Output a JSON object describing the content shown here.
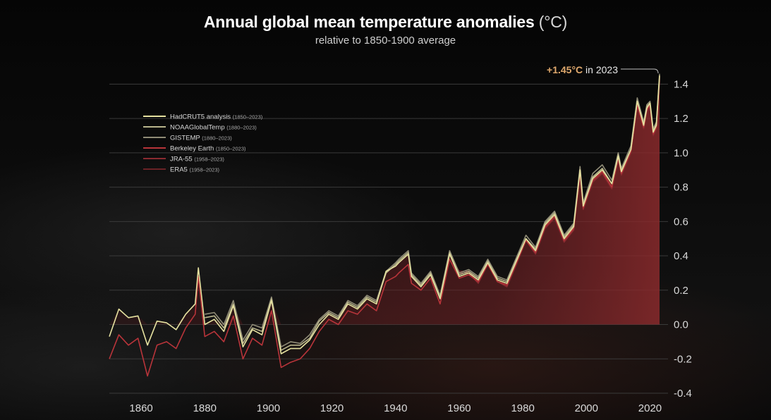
{
  "title": "Annual global mean temperature anomalies",
  "title_unit": "(°C)",
  "subtitle": "relative to 1850-1900 average",
  "annotation": {
    "prefix": "+",
    "value": "1.45",
    "unit_text": "°C",
    "suffix": " in 2023"
  },
  "chart_data": {
    "type": "line",
    "title": "Annual global mean temperature anomalies (°C)",
    "subtitle": "relative to 1850-1900 average",
    "xlim": [
      1850,
      2023
    ],
    "ylim": [
      -0.4,
      1.5
    ],
    "x_ticks": [
      1860,
      1880,
      1900,
      1920,
      1940,
      1960,
      1980,
      2000,
      2020
    ],
    "x_tick_labels": [
      "1860",
      "1880",
      "1900",
      "1920",
      "1940",
      "1960",
      "1980",
      "2000",
      "2020"
    ],
    "y_ticks": [
      -0.4,
      -0.2,
      0.0,
      0.2,
      0.4,
      0.6,
      0.8,
      1.0,
      1.2,
      1.4
    ],
    "y_tick_labels": [
      "-0.4",
      "-0.2",
      "0.0",
      "0.2",
      "0.4",
      "0.6",
      "0.8",
      "1.0",
      "1.2",
      "1.4"
    ],
    "y_axis_side": "right",
    "grid": true,
    "legend_position": "top-left",
    "series": [
      {
        "name": "HadCRUT5 analysis",
        "range": "(1850–2023)",
        "color": "#e6e2a0",
        "x": [
          1850,
          1853,
          1856,
          1859,
          1862,
          1865,
          1868,
          1871,
          1874,
          1877,
          1878,
          1880,
          1883,
          1886,
          1889,
          1892,
          1895,
          1898,
          1901,
          1904,
          1907,
          1910,
          1913,
          1916,
          1919,
          1922,
          1925,
          1928,
          1931,
          1934,
          1937,
          1940,
          1941,
          1944,
          1945,
          1948,
          1951,
          1954,
          1957,
          1960,
          1963,
          1966,
          1969,
          1972,
          1975,
          1978,
          1981,
          1984,
          1987,
          1990,
          1993,
          1996,
          1998,
          1999,
          2002,
          2005,
          2008,
          2010,
          2011,
          2014,
          2016,
          2018,
          2019,
          2020,
          2021,
          2022,
          2023
        ],
        "y": [
          -0.07,
          0.09,
          0.04,
          0.05,
          -0.12,
          0.02,
          0.01,
          -0.03,
          0.06,
          0.12,
          0.33,
          0.0,
          0.03,
          -0.04,
          0.11,
          -0.13,
          -0.03,
          -0.06,
          0.14,
          -0.17,
          -0.14,
          -0.14,
          -0.09,
          0.0,
          0.06,
          0.03,
          0.12,
          0.09,
          0.15,
          0.12,
          0.31,
          0.34,
          0.36,
          0.41,
          0.28,
          0.22,
          0.29,
          0.15,
          0.41,
          0.28,
          0.3,
          0.26,
          0.36,
          0.26,
          0.24,
          0.37,
          0.5,
          0.43,
          0.58,
          0.64,
          0.5,
          0.57,
          0.9,
          0.69,
          0.85,
          0.9,
          0.82,
          0.98,
          0.89,
          1.02,
          1.3,
          1.16,
          1.26,
          1.29,
          1.12,
          1.16,
          1.45
        ]
      },
      {
        "name": "NOAAGlobalTemp",
        "range": "(1880–2023)",
        "color": "#b9b58c",
        "x": [
          1880,
          1883,
          1886,
          1889,
          1892,
          1895,
          1898,
          1901,
          1904,
          1907,
          1910,
          1913,
          1916,
          1919,
          1922,
          1925,
          1928,
          1931,
          1934,
          1937,
          1940,
          1941,
          1944,
          1945,
          1948,
          1951,
          1954,
          1957,
          1960,
          1963,
          1966,
          1969,
          1972,
          1975,
          1978,
          1981,
          1984,
          1987,
          1990,
          1993,
          1996,
          1998,
          1999,
          2002,
          2005,
          2008,
          2010,
          2011,
          2014,
          2016,
          2018,
          2019,
          2020,
          2021,
          2022,
          2023
        ],
        "y": [
          0.04,
          0.05,
          -0.02,
          0.12,
          -0.11,
          -0.02,
          -0.04,
          0.15,
          -0.15,
          -0.12,
          -0.12,
          -0.08,
          0.02,
          0.07,
          0.04,
          0.13,
          0.1,
          0.16,
          0.13,
          0.3,
          0.35,
          0.37,
          0.42,
          0.29,
          0.23,
          0.3,
          0.16,
          0.42,
          0.29,
          0.31,
          0.27,
          0.37,
          0.27,
          0.25,
          0.38,
          0.5,
          0.44,
          0.59,
          0.65,
          0.51,
          0.58,
          0.9,
          0.7,
          0.86,
          0.91,
          0.82,
          0.99,
          0.9,
          1.02,
          1.3,
          1.17,
          1.27,
          1.29,
          1.13,
          1.17,
          1.44
        ]
      },
      {
        "name": "GISTEMP",
        "range": "(1880–2023)",
        "color": "#8f8b76",
        "x": [
          1880,
          1883,
          1886,
          1889,
          1892,
          1895,
          1898,
          1901,
          1904,
          1907,
          1910,
          1913,
          1916,
          1919,
          1922,
          1925,
          1928,
          1931,
          1934,
          1937,
          1940,
          1941,
          1944,
          1945,
          1948,
          1951,
          1954,
          1957,
          1960,
          1963,
          1966,
          1969,
          1972,
          1975,
          1978,
          1981,
          1984,
          1987,
          1990,
          1993,
          1996,
          1998,
          1999,
          2002,
          2005,
          2008,
          2010,
          2011,
          2014,
          2016,
          2018,
          2019,
          2020,
          2021,
          2022,
          2023
        ],
        "y": [
          0.06,
          0.07,
          0.0,
          0.14,
          -0.09,
          0.0,
          -0.02,
          0.16,
          -0.13,
          -0.1,
          -0.11,
          -0.06,
          0.03,
          0.08,
          0.05,
          0.14,
          0.11,
          0.17,
          0.14,
          0.31,
          0.36,
          0.38,
          0.43,
          0.3,
          0.24,
          0.31,
          0.17,
          0.43,
          0.3,
          0.32,
          0.28,
          0.38,
          0.28,
          0.26,
          0.39,
          0.52,
          0.45,
          0.6,
          0.66,
          0.52,
          0.59,
          0.92,
          0.71,
          0.88,
          0.93,
          0.84,
          1.0,
          0.91,
          1.04,
          1.32,
          1.18,
          1.28,
          1.3,
          1.14,
          1.18,
          1.46
        ]
      },
      {
        "name": "Berkeley Earth",
        "range": "(1850–2023)",
        "color": "#b8343a",
        "x": [
          1850,
          1853,
          1856,
          1859,
          1862,
          1865,
          1868,
          1871,
          1874,
          1877,
          1878,
          1880,
          1883,
          1886,
          1889,
          1892,
          1895,
          1898,
          1901,
          1904,
          1907,
          1910,
          1913,
          1916,
          1919,
          1922,
          1925,
          1928,
          1931,
          1934,
          1937,
          1940,
          1941,
          1944,
          1945,
          1948,
          1951,
          1954,
          1957,
          1960,
          1963,
          1966,
          1969,
          1972,
          1975,
          1978,
          1981,
          1984,
          1987,
          1990,
          1993,
          1996,
          1998,
          1999,
          2002,
          2005,
          2008,
          2010,
          2011,
          2014,
          2016,
          2018,
          2019,
          2020,
          2021,
          2022,
          2023
        ],
        "y": [
          -0.2,
          -0.06,
          -0.12,
          -0.08,
          -0.3,
          -0.12,
          -0.1,
          -0.14,
          -0.02,
          0.06,
          0.28,
          -0.07,
          -0.04,
          -0.1,
          0.05,
          -0.2,
          -0.08,
          -0.12,
          0.08,
          -0.25,
          -0.22,
          -0.2,
          -0.14,
          -0.04,
          0.03,
          0.0,
          0.08,
          0.06,
          0.12,
          0.08,
          0.25,
          0.28,
          0.3,
          0.35,
          0.24,
          0.2,
          0.27,
          0.12,
          0.38,
          0.27,
          0.29,
          0.25,
          0.35,
          0.25,
          0.23,
          0.36,
          0.49,
          0.42,
          0.57,
          0.63,
          0.49,
          0.56,
          0.88,
          0.68,
          0.84,
          0.89,
          0.8,
          0.97,
          0.88,
          1.01,
          1.28,
          1.15,
          1.25,
          1.28,
          1.11,
          1.15,
          1.43
        ]
      },
      {
        "name": "JRA-55",
        "range": "(1958–2023)",
        "color": "#8a2a30",
        "x": [
          1958,
          1960,
          1963,
          1966,
          1969,
          1972,
          1975,
          1978,
          1981,
          1984,
          1987,
          1990,
          1993,
          1996,
          1998,
          1999,
          2002,
          2005,
          2008,
          2010,
          2011,
          2014,
          2016,
          2018,
          2019,
          2020,
          2021,
          2022,
          2023
        ],
        "y": [
          0.36,
          0.3,
          0.3,
          0.24,
          0.35,
          0.25,
          0.22,
          0.35,
          0.49,
          0.41,
          0.56,
          0.62,
          0.48,
          0.55,
          0.87,
          0.67,
          0.83,
          0.88,
          0.79,
          0.96,
          0.87,
          1.0,
          1.27,
          1.14,
          1.24,
          1.27,
          1.1,
          1.14,
          1.42
        ]
      },
      {
        "name": "ERA5",
        "range": "(1958–2023)",
        "color": "#6b2226",
        "x": [
          1958,
          1960,
          1963,
          1966,
          1969,
          1972,
          1975,
          1978,
          1981,
          1984,
          1987,
          1990,
          1993,
          1996,
          1998,
          1999,
          2002,
          2005,
          2008,
          2010,
          2011,
          2014,
          2016,
          2018,
          2019,
          2020,
          2021,
          2022,
          2023
        ],
        "y": [
          0.37,
          0.31,
          0.31,
          0.25,
          0.36,
          0.26,
          0.23,
          0.36,
          0.5,
          0.42,
          0.57,
          0.63,
          0.49,
          0.56,
          0.88,
          0.68,
          0.84,
          0.89,
          0.8,
          0.97,
          0.88,
          1.01,
          1.28,
          1.15,
          1.25,
          1.28,
          1.11,
          1.15,
          1.45
        ]
      }
    ]
  }
}
